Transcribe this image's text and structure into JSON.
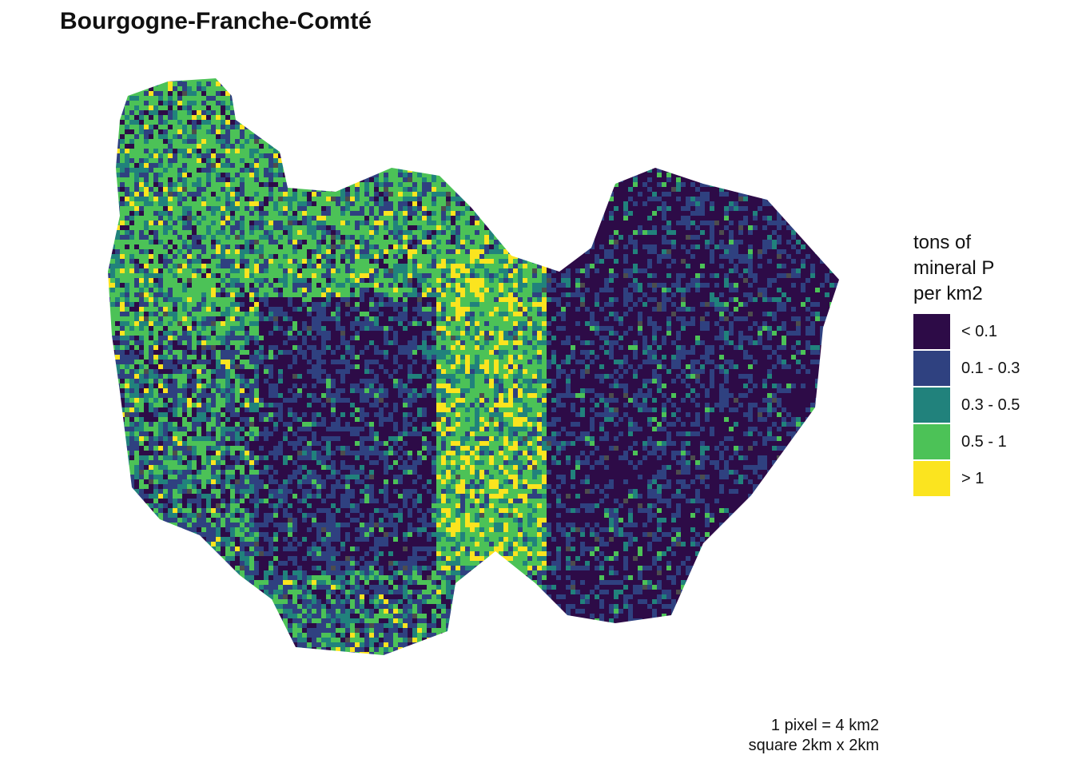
{
  "title": "Bourgogne-Franche-Comté",
  "legend": {
    "title_lines": [
      "tons of",
      "mineral P",
      "per km2"
    ],
    "items": [
      {
        "label": "< 0.1",
        "color": "#2d0b47"
      },
      {
        "label": "0.1 - 0.3",
        "color": "#2f4180"
      },
      {
        "label": "0.3 - 0.5",
        "color": "#21827c"
      },
      {
        "label": "0.5 - 1",
        "color": "#4cc257"
      },
      {
        "label": "> 1",
        "color": "#fbe41f"
      }
    ]
  },
  "caption": {
    "line1": "1 pixel = 4 km2",
    "line2": "square 2km x 2km"
  },
  "colors": {
    "no_data": "#4d4d4d"
  }
}
